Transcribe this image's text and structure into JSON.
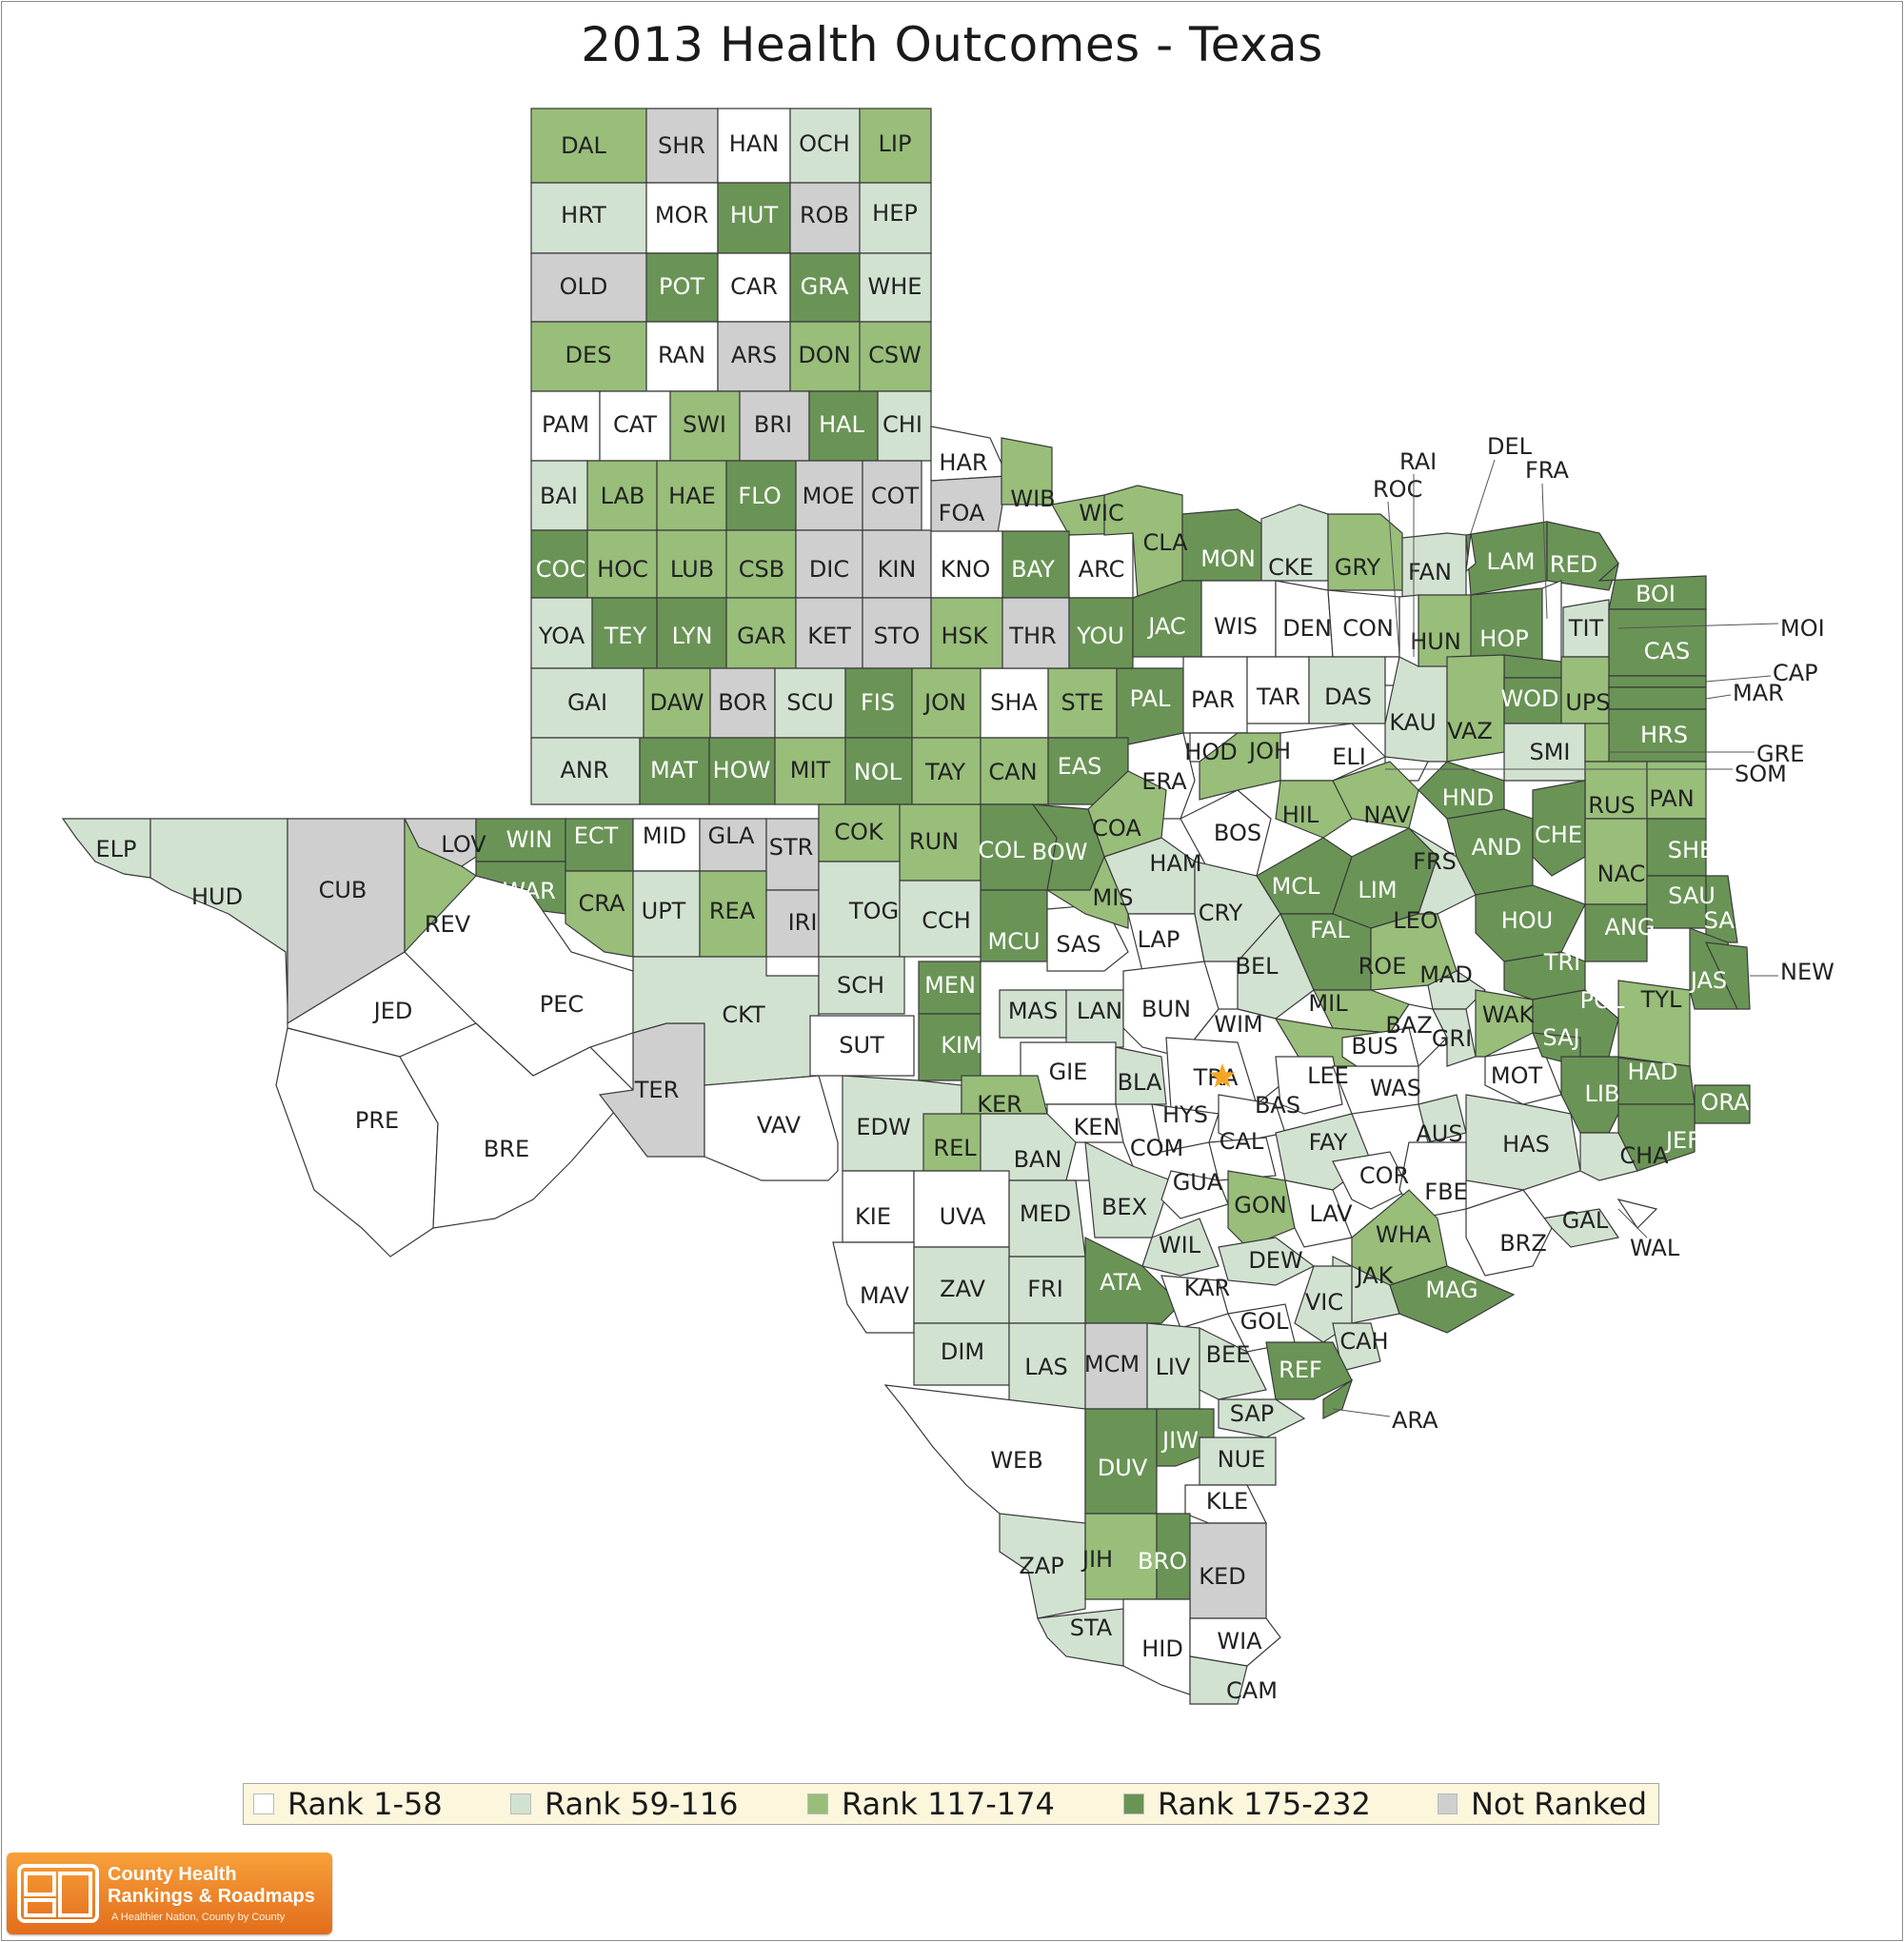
{
  "title": "2013 Health Outcomes - Texas",
  "colors": {
    "rank_1_58": "#ffffff",
    "rank_59_116": "#d2e2d1",
    "rank_117_174": "#98be7a",
    "rank_175_232": "#6a9456",
    "not_ranked": "#cfcfcf",
    "legend_background": "#fcf6dd",
    "logo_orange": "#f28c28"
  },
  "legend": [
    {
      "label": "Rank 1-58",
      "class": "r1"
    },
    {
      "label": "Rank 59-116",
      "class": "r2"
    },
    {
      "label": "Rank 117-174",
      "class": "r3"
    },
    {
      "label": "Rank 175-232",
      "class": "r4"
    },
    {
      "label": "Not Ranked",
      "class": "nr"
    }
  ],
  "counties": [
    {
      "label": "DAL",
      "class": "r3"
    },
    {
      "label": "SHR",
      "class": "nr"
    },
    {
      "label": "HAN",
      "class": "r1"
    },
    {
      "label": "OCH",
      "class": "r2"
    },
    {
      "label": "LIP",
      "class": "r3"
    },
    {
      "label": "HRT",
      "class": "r2"
    },
    {
      "label": "MOR",
      "class": "r1"
    },
    {
      "label": "HUT",
      "class": "r4"
    },
    {
      "label": "ROB",
      "class": "nr"
    },
    {
      "label": "HEP",
      "class": "r2"
    },
    {
      "label": "OLD",
      "class": "nr"
    },
    {
      "label": "POT",
      "class": "r4"
    },
    {
      "label": "CAR",
      "class": "r1"
    },
    {
      "label": "GRA",
      "class": "r4"
    },
    {
      "label": "WHE",
      "class": "r2"
    },
    {
      "label": "DES",
      "class": "r3"
    },
    {
      "label": "RAN",
      "class": "r1"
    },
    {
      "label": "ARS",
      "class": "nr"
    },
    {
      "label": "DON",
      "class": "r3"
    },
    {
      "label": "CSW",
      "class": "r3"
    },
    {
      "label": "PAM",
      "class": "r1"
    },
    {
      "label": "CAT",
      "class": "r1"
    },
    {
      "label": "SWI",
      "class": "r3"
    },
    {
      "label": "BRI",
      "class": "nr"
    },
    {
      "label": "HAL",
      "class": "r4"
    },
    {
      "label": "CHI",
      "class": "r2"
    },
    {
      "label": "BAI",
      "class": "r2"
    },
    {
      "label": "LAB",
      "class": "r3"
    },
    {
      "label": "HAE",
      "class": "r3"
    },
    {
      "label": "FLO",
      "class": "r4"
    },
    {
      "label": "MOE",
      "class": "nr"
    },
    {
      "label": "COT",
      "class": "nr"
    },
    {
      "label": "COC",
      "class": "r4"
    },
    {
      "label": "HOC",
      "class": "r3"
    },
    {
      "label": "LUB",
      "class": "r3"
    },
    {
      "label": "CSB",
      "class": "r3"
    },
    {
      "label": "DIC",
      "class": "nr"
    },
    {
      "label": "KIN",
      "class": "nr"
    },
    {
      "label": "YOA",
      "class": "r2"
    },
    {
      "label": "TEY",
      "class": "r4"
    },
    {
      "label": "LYN",
      "class": "r4"
    },
    {
      "label": "GAR",
      "class": "r3"
    },
    {
      "label": "KET",
      "class": "nr"
    },
    {
      "label": "STO",
      "class": "nr"
    },
    {
      "label": "GAI",
      "class": "r2"
    },
    {
      "label": "DAW",
      "class": "r3"
    },
    {
      "label": "BOR",
      "class": "nr"
    },
    {
      "label": "SCU",
      "class": "r2"
    },
    {
      "label": "FIS",
      "class": "r4"
    },
    {
      "label": "JON",
      "class": "r3"
    },
    {
      "label": "ANR",
      "class": "r2"
    },
    {
      "label": "MAT",
      "class": "r4"
    },
    {
      "label": "HOW",
      "class": "r4"
    },
    {
      "label": "MIT",
      "class": "r3"
    },
    {
      "label": "NOL",
      "class": "r4"
    },
    {
      "label": "TAY",
      "class": "r3"
    },
    {
      "label": "HAR",
      "class": "r1"
    },
    {
      "label": "FOA",
      "class": "nr"
    },
    {
      "label": "WIB",
      "class": "r3"
    },
    {
      "label": "WIC",
      "class": "r3"
    },
    {
      "label": "KNO",
      "class": "r1"
    },
    {
      "label": "BAY",
      "class": "r4"
    },
    {
      "label": "ARC",
      "class": "r1"
    },
    {
      "label": "HSK",
      "class": "r3"
    },
    {
      "label": "THR",
      "class": "nr"
    },
    {
      "label": "YOU",
      "class": "r4"
    },
    {
      "label": "SHA",
      "class": "r1"
    },
    {
      "label": "STE",
      "class": "r3"
    },
    {
      "label": "CAN",
      "class": "r3"
    },
    {
      "label": "EAS",
      "class": "r4"
    },
    {
      "label": "CLA",
      "class": "r3"
    },
    {
      "label": "MON",
      "class": "r4"
    },
    {
      "label": "CKE",
      "class": "r2"
    },
    {
      "label": "GRY",
      "class": "r3"
    },
    {
      "label": "FAN",
      "class": "r2"
    },
    {
      "label": "JAC",
      "class": "r4"
    },
    {
      "label": "WIS",
      "class": "r1"
    },
    {
      "label": "DEN",
      "class": "r1"
    },
    {
      "label": "CON",
      "class": "r1"
    },
    {
      "label": "PAL",
      "class": "r4"
    },
    {
      "label": "PAR",
      "class": "r1"
    },
    {
      "label": "TAR",
      "class": "r1"
    },
    {
      "label": "DAS",
      "class": "r2"
    },
    {
      "label": "ERA",
      "class": "r1"
    },
    {
      "label": "HOD",
      "class": "r1"
    },
    {
      "label": "JOH",
      "class": "r3"
    },
    {
      "label": "ELI",
      "class": "r1"
    },
    {
      "label": "KAU",
      "class": "r2"
    },
    {
      "label": "LAM",
      "class": "r4"
    },
    {
      "label": "RED",
      "class": "r4"
    },
    {
      "label": "HUN",
      "class": "r3"
    },
    {
      "label": "HOP",
      "class": "r4"
    },
    {
      "label": "TIT",
      "class": "r2"
    },
    {
      "label": "BOI",
      "class": "r4"
    },
    {
      "label": "CAS",
      "class": "r4"
    },
    {
      "label": "VAZ",
      "class": "r3"
    },
    {
      "label": "WOD",
      "class": "r4"
    },
    {
      "label": "UPS",
      "class": "r3"
    },
    {
      "label": "HRS",
      "class": "r4"
    },
    {
      "label": "SMI",
      "class": "r2"
    },
    {
      "label": "RUS",
      "class": "r3"
    },
    {
      "label": "PAN",
      "class": "r3"
    },
    {
      "label": "ELP",
      "class": "r2"
    },
    {
      "label": "HUD",
      "class": "r2"
    },
    {
      "label": "CUB",
      "class": "nr"
    },
    {
      "label": "LOV",
      "class": "nr"
    },
    {
      "label": "WIN",
      "class": "r4"
    },
    {
      "label": "ECT",
      "class": "r4"
    },
    {
      "label": "MID",
      "class": "r1"
    },
    {
      "label": "GLA",
      "class": "nr"
    },
    {
      "label": "STR",
      "class": "nr"
    },
    {
      "label": "COK",
      "class": "r3"
    },
    {
      "label": "RUN",
      "class": "r3"
    },
    {
      "label": "COL",
      "class": "r4"
    },
    {
      "label": "BOW",
      "class": "r4"
    },
    {
      "label": "COA",
      "class": "r3"
    },
    {
      "label": "BOS",
      "class": "r1"
    },
    {
      "label": "HIL",
      "class": "r3"
    },
    {
      "label": "NAV",
      "class": "r3"
    },
    {
      "label": "HND",
      "class": "r4"
    },
    {
      "label": "AND",
      "class": "r4"
    },
    {
      "label": "CHE",
      "class": "r4"
    },
    {
      "label": "SHE",
      "class": "r4"
    },
    {
      "label": "NAC",
      "class": "r3"
    },
    {
      "label": "REV",
      "class": "r3"
    },
    {
      "label": "WAR",
      "class": "r4"
    },
    {
      "label": "CRA",
      "class": "r3"
    },
    {
      "label": "UPT",
      "class": "r2"
    },
    {
      "label": "REA",
      "class": "r3"
    },
    {
      "label": "IRI",
      "class": "nr"
    },
    {
      "label": "TOG",
      "class": "r2"
    },
    {
      "label": "CCH",
      "class": "r2"
    },
    {
      "label": "MCU",
      "class": "r4"
    },
    {
      "label": "SAS",
      "class": "r1"
    },
    {
      "label": "HAM",
      "class": "r2"
    },
    {
      "label": "MIS",
      "class": "r3"
    },
    {
      "label": "LAP",
      "class": "r1"
    },
    {
      "label": "CRY",
      "class": "r2"
    },
    {
      "label": "MCL",
      "class": "r4"
    },
    {
      "label": "LIM",
      "class": "r4"
    },
    {
      "label": "FRS",
      "class": "r2"
    },
    {
      "label": "HOU",
      "class": "r4"
    },
    {
      "label": "SAU",
      "class": "r4"
    },
    {
      "label": "SAB",
      "class": "r4"
    },
    {
      "label": "ANG",
      "class": "r4"
    },
    {
      "label": "FAL",
      "class": "r4"
    },
    {
      "label": "LEO",
      "class": "r3"
    },
    {
      "label": "BEL",
      "class": "r2"
    },
    {
      "label": "ROE",
      "class": "r3"
    },
    {
      "label": "MAD",
      "class": "r2"
    },
    {
      "label": "TRI",
      "class": "r4"
    },
    {
      "label": "JAS",
      "class": "r4"
    },
    {
      "label": "NEW",
      "class": "r4"
    },
    {
      "label": "JED",
      "class": "r1"
    },
    {
      "label": "PEC",
      "class": "r1"
    },
    {
      "label": "CKT",
      "class": "r2"
    },
    {
      "label": "SCH",
      "class": "r2"
    },
    {
      "label": "MEN",
      "class": "r4"
    },
    {
      "label": "MAS",
      "class": "r2"
    },
    {
      "label": "LAN",
      "class": "r2"
    },
    {
      "label": "BUN",
      "class": "r1"
    },
    {
      "label": "WIM",
      "class": "r1"
    },
    {
      "label": "MIL",
      "class": "r3"
    },
    {
      "label": "BAZ",
      "class": "r1"
    },
    {
      "label": "GRI",
      "class": "r2"
    },
    {
      "label": "WAK",
      "class": "r3"
    },
    {
      "label": "POL",
      "class": "r4"
    },
    {
      "label": "TYL",
      "class": "r3"
    },
    {
      "label": "TER",
      "class": "nr"
    },
    {
      "label": "SUT",
      "class": "r1"
    },
    {
      "label": "KIM",
      "class": "r4"
    },
    {
      "label": "GIE",
      "class": "r1"
    },
    {
      "label": "BLA",
      "class": "r2"
    },
    {
      "label": "TRA",
      "class": "r1"
    },
    {
      "label": "LEE",
      "class": "r1"
    },
    {
      "label": "BUS",
      "class": "r1"
    },
    {
      "label": "MOT",
      "class": "r1"
    },
    {
      "label": "SAJ",
      "class": "r4"
    },
    {
      "label": "HAD",
      "class": "r4"
    },
    {
      "label": "PRE",
      "class": "r1"
    },
    {
      "label": "BRE",
      "class": "r1"
    },
    {
      "label": "VAV",
      "class": "r1"
    },
    {
      "label": "EDW",
      "class": "r2"
    },
    {
      "label": "KER",
      "class": "r3"
    },
    {
      "label": "KEN",
      "class": "r1"
    },
    {
      "label": "HYS",
      "class": "r1"
    },
    {
      "label": "BAS",
      "class": "r1"
    },
    {
      "label": "WAS",
      "class": "r1"
    },
    {
      "label": "AUS",
      "class": "r2"
    },
    {
      "label": "HAS",
      "class": "r2"
    },
    {
      "label": "LIB",
      "class": "r4"
    },
    {
      "label": "ORA",
      "class": "r4"
    },
    {
      "label": "JEF",
      "class": "r4"
    },
    {
      "label": "REL",
      "class": "r3"
    },
    {
      "label": "BAN",
      "class": "r2"
    },
    {
      "label": "COM",
      "class": "r1"
    },
    {
      "label": "CAL",
      "class": "r1"
    },
    {
      "label": "FAY",
      "class": "r2"
    },
    {
      "label": "CHA",
      "class": "r2"
    },
    {
      "label": "KIE",
      "class": "r1"
    },
    {
      "label": "UVA",
      "class": "r1"
    },
    {
      "label": "MED",
      "class": "r2"
    },
    {
      "label": "BEX",
      "class": "r2"
    },
    {
      "label": "GUA",
      "class": "r1"
    },
    {
      "label": "GON",
      "class": "r3"
    },
    {
      "label": "LAV",
      "class": "r1"
    },
    {
      "label": "COR",
      "class": "r1"
    },
    {
      "label": "FBE",
      "class": "r1"
    },
    {
      "label": "GAL",
      "class": "r2"
    },
    {
      "label": "WAL",
      "class": "r1"
    },
    {
      "label": "BRZ",
      "class": "r1"
    },
    {
      "label": "WHA",
      "class": "r3"
    },
    {
      "label": "WIL",
      "class": "r2"
    },
    {
      "label": "DEW",
      "class": "r2"
    },
    {
      "label": "JAK",
      "class": "r2"
    },
    {
      "label": "MAV",
      "class": "r1"
    },
    {
      "label": "ZAV",
      "class": "r2"
    },
    {
      "label": "FRI",
      "class": "r2"
    },
    {
      "label": "ATA",
      "class": "r4"
    },
    {
      "label": "KAR",
      "class": "r1"
    },
    {
      "label": "VIC",
      "class": "r2"
    },
    {
      "label": "MAG",
      "class": "r4"
    },
    {
      "label": "GOL",
      "class": "r1"
    },
    {
      "label": "CAH",
      "class": "r2"
    },
    {
      "label": "DIM",
      "class": "r2"
    },
    {
      "label": "LAS",
      "class": "r2"
    },
    {
      "label": "MCM",
      "class": "nr"
    },
    {
      "label": "LIV",
      "class": "r2"
    },
    {
      "label": "BEE",
      "class": "r2"
    },
    {
      "label": "REF",
      "class": "r4"
    },
    {
      "label": "ARA",
      "class": "r4"
    },
    {
      "label": "SAP",
      "class": "r2"
    },
    {
      "label": "WEB",
      "class": "r1"
    },
    {
      "label": "DUV",
      "class": "r4"
    },
    {
      "label": "JIW",
      "class": "r4"
    },
    {
      "label": "NUE",
      "class": "r2"
    },
    {
      "label": "KLE",
      "class": "r1"
    },
    {
      "label": "ZAP",
      "class": "r2"
    },
    {
      "label": "JIH",
      "class": "r3"
    },
    {
      "label": "BRO",
      "class": "r4"
    },
    {
      "label": "KED",
      "class": "nr"
    },
    {
      "label": "STA",
      "class": "r2"
    },
    {
      "label": "HID",
      "class": "r1"
    },
    {
      "label": "WIA",
      "class": "r1"
    },
    {
      "label": "CAM",
      "class": "r2"
    },
    {
      "label": "RAI",
      "class": "r1"
    },
    {
      "label": "ROC",
      "class": "r1"
    },
    {
      "label": "DEL",
      "class": "r1"
    },
    {
      "label": "FRA",
      "class": "r1"
    },
    {
      "label": "MOI",
      "class": "r4"
    },
    {
      "label": "CAP",
      "class": "r4"
    },
    {
      "label": "MAR",
      "class": "r4"
    },
    {
      "label": "GRE",
      "class": "r3"
    },
    {
      "label": "SOM",
      "class": "r1"
    }
  ],
  "logo": {
    "line1": "County Health",
    "line2": "Rankings & Roadmaps",
    "tagline": "A Healthier Nation, County by County"
  }
}
